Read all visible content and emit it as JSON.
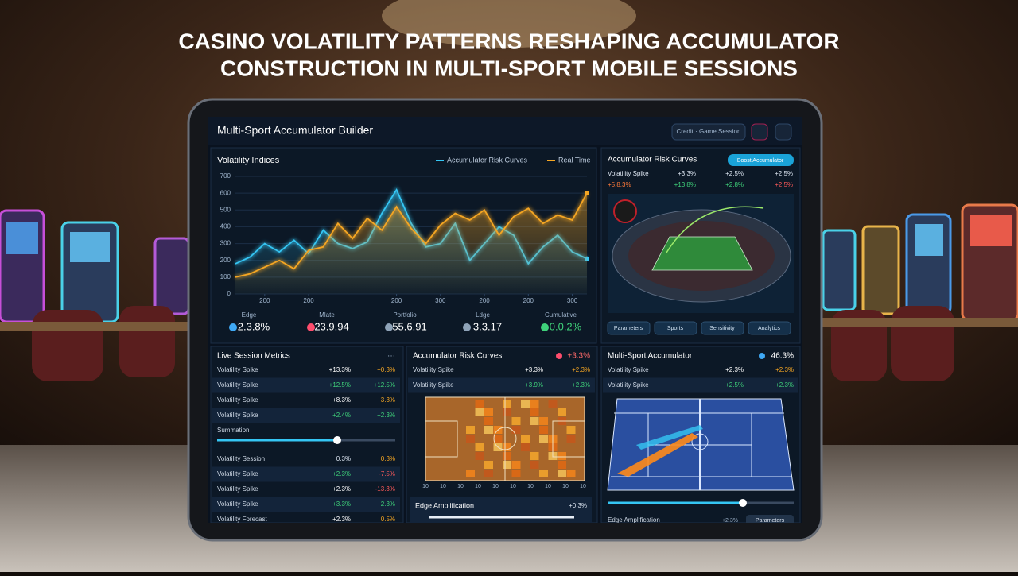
{
  "headline": [
    "CASINO VOLATILITY PATTERNS RESHAPING ACCUMULATOR",
    "CONSTRUCTION IN MULTI-SPORT MOBILE SESSIONS"
  ],
  "app": {
    "title": "Multi-Sport Accumulator Builder",
    "session_button": "Credit · Game Session"
  },
  "chart_data": {
    "type": "line",
    "title": "Volatility Indices",
    "x": [
      0,
      1,
      2,
      3,
      4,
      5,
      6,
      7,
      8,
      9,
      10,
      11,
      12,
      13,
      14,
      15,
      16,
      17,
      18,
      19,
      20,
      21,
      22,
      23,
      24
    ],
    "series": [
      {
        "name": "Accumulator Risk Curves",
        "color": "#35c6f4",
        "values": [
          180,
          220,
          300,
          250,
          320,
          240,
          380,
          300,
          270,
          310,
          480,
          620,
          420,
          280,
          300,
          420,
          200,
          300,
          400,
          350,
          180,
          280,
          350,
          250,
          210
        ]
      },
      {
        "name": "Real Time",
        "color": "#f5a623",
        "values": [
          100,
          120,
          160,
          200,
          150,
          260,
          280,
          420,
          330,
          450,
          380,
          520,
          390,
          300,
          410,
          480,
          440,
          500,
          350,
          460,
          510,
          420,
          470,
          440,
          600
        ]
      }
    ],
    "xlim": [
      0,
      24
    ],
    "xticks": [
      {
        "value": 2,
        "label": "200"
      },
      {
        "value": 5,
        "label": "200"
      },
      {
        "value": 11,
        "label": "200"
      },
      {
        "value": 14,
        "label": "300"
      },
      {
        "value": 17,
        "label": "200"
      },
      {
        "value": 20,
        "label": "200"
      },
      {
        "value": 23,
        "label": "300"
      }
    ],
    "ylim": [
      0,
      700
    ],
    "yticks": [
      0,
      100,
      200,
      300,
      400,
      500,
      600,
      700
    ],
    "grid": true
  },
  "stats": [
    {
      "label": "Edge",
      "value": "2.3.8%"
    },
    {
      "label": "Mlate",
      "value": "23.9.94"
    },
    {
      "label": "Portfolio",
      "value": "55.6.91"
    },
    {
      "label": "Ldge",
      "value": "3.3.17"
    },
    {
      "label": "Cumulative",
      "value": "0.0.2%"
    }
  ],
  "risk_panel": {
    "title": "Accumulator Risk Curves",
    "button": "Boost Accumulator",
    "rows": [
      [
        "Volatility Spike",
        "+3.3%",
        "+2.5%",
        "+2.5%"
      ],
      [
        "+5.8.3%",
        "+13.8%",
        "+2.8%",
        "+2.5%"
      ]
    ],
    "tabs": [
      "Parameters",
      "Sports",
      "Sensitivity",
      "Analytics"
    ]
  },
  "live_metrics": {
    "title": "Live Session Metrics",
    "more": "···",
    "rows": [
      [
        "Volatility Spike",
        "+13.3%",
        "+0.3%"
      ],
      [
        "Volatility Spike",
        "+12.5%",
        "+12.5%"
      ],
      [
        "Volatility Spike",
        "+8.3%",
        "+3.3%"
      ],
      [
        "Volatility Spike",
        "+2.4%",
        "+2.3%"
      ]
    ],
    "slider_label": "Summation",
    "rows2": [
      [
        "Volatility Session",
        "0.3%",
        "0.3%"
      ],
      [
        "Volatility Spike",
        "+2.3%",
        "-7.5%"
      ],
      [
        "Volatility Spike",
        "+2.3%",
        "-13.3%"
      ],
      [
        "Volatility Spike",
        "+3.3%",
        "+2.3%"
      ],
      [
        "Volatility Forecast",
        "+2.3%",
        "0.5%"
      ]
    ]
  },
  "court_panel": {
    "title": "Accumulator Risk Curves",
    "badge": "+3.3%",
    "rows": [
      [
        "Volatility Spike",
        "+3.3%",
        "+2.3%"
      ],
      [
        "Volatility Spike",
        "+3.9%",
        "+2.3%"
      ]
    ],
    "axis_labels": [
      "10",
      "10",
      "10",
      "10",
      "10",
      "10",
      "10",
      "10",
      "10",
      "10"
    ],
    "footer_label": "Edge Amplification",
    "footer_value": "+0.3%"
  },
  "tennis_panel": {
    "title": "Multi-Sport Accumulator",
    "badge": "46.3%",
    "rows": [
      [
        "Volatility Spike",
        "+2.3%",
        "+2.3%"
      ],
      [
        "Volatility Spike",
        "+2.5%",
        "+2.3%"
      ]
    ],
    "footer_label": "Edge Amplification",
    "footer_value": "+2.3%",
    "footer_button": "Parameters"
  }
}
